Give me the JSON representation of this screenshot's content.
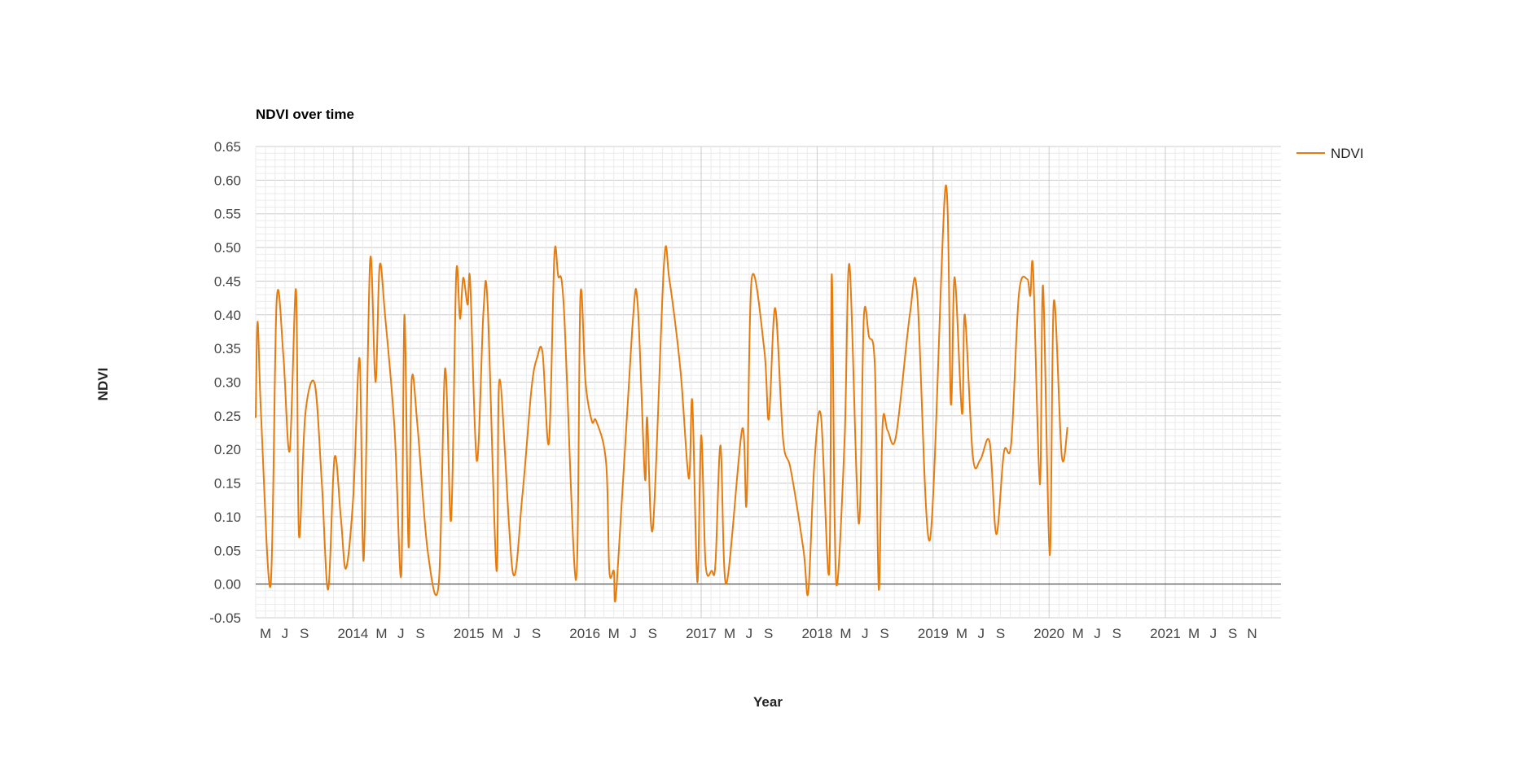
{
  "chart_data": {
    "type": "line",
    "title": "NDVI over time",
    "xlabel": "Year",
    "ylabel": "NDVI",
    "ylim": [
      -0.05,
      0.65
    ],
    "yticks": [
      "0.65",
      "0.60",
      "0.55",
      "0.50",
      "0.45",
      "0.40",
      "0.35",
      "0.30",
      "0.25",
      "0.20",
      "0.15",
      "0.10",
      "0.05",
      "0.00",
      "-0.05"
    ],
    "xlim": [
      "2013-03-01",
      "2021-12-31"
    ],
    "xticks": [
      {
        "date": "2013-04-01",
        "label": "M"
      },
      {
        "date": "2013-06-01",
        "label": "J"
      },
      {
        "date": "2013-08-01",
        "label": "S"
      },
      {
        "date": "2014-01-01",
        "label": "2014"
      },
      {
        "date": "2014-04-01",
        "label": "M"
      },
      {
        "date": "2014-06-01",
        "label": "J"
      },
      {
        "date": "2014-08-01",
        "label": "S"
      },
      {
        "date": "2015-01-01",
        "label": "2015"
      },
      {
        "date": "2015-04-01",
        "label": "M"
      },
      {
        "date": "2015-06-01",
        "label": "J"
      },
      {
        "date": "2015-08-01",
        "label": "S"
      },
      {
        "date": "2016-01-01",
        "label": "2016"
      },
      {
        "date": "2016-04-01",
        "label": "M"
      },
      {
        "date": "2016-06-01",
        "label": "J"
      },
      {
        "date": "2016-08-01",
        "label": "S"
      },
      {
        "date": "2017-01-01",
        "label": "2017"
      },
      {
        "date": "2017-04-01",
        "label": "M"
      },
      {
        "date": "2017-06-01",
        "label": "J"
      },
      {
        "date": "2017-08-01",
        "label": "S"
      },
      {
        "date": "2018-01-01",
        "label": "2018"
      },
      {
        "date": "2018-04-01",
        "label": "M"
      },
      {
        "date": "2018-06-01",
        "label": "J"
      },
      {
        "date": "2018-08-01",
        "label": "S"
      },
      {
        "date": "2019-01-01",
        "label": "2019"
      },
      {
        "date": "2019-04-01",
        "label": "M"
      },
      {
        "date": "2019-06-01",
        "label": "J"
      },
      {
        "date": "2019-08-01",
        "label": "S"
      },
      {
        "date": "2020-01-01",
        "label": "2020"
      },
      {
        "date": "2020-04-01",
        "label": "M"
      },
      {
        "date": "2020-06-01",
        "label": "J"
      },
      {
        "date": "2020-08-01",
        "label": "S"
      },
      {
        "date": "2021-01-01",
        "label": "2021"
      },
      {
        "date": "2021-04-01",
        "label": "M"
      },
      {
        "date": "2021-06-01",
        "label": "J"
      },
      {
        "date": "2021-08-01",
        "label": "S"
      },
      {
        "date": "2021-10-01",
        "label": "N"
      }
    ],
    "grid": true,
    "legend_position": "right",
    "series": [
      {
        "name": "NDVI",
        "color": "#e67c0e",
        "points": [
          [
            "2013-03-01",
            0.247
          ],
          [
            "2013-03-07",
            0.39
          ],
          [
            "2013-03-18",
            0.25
          ],
          [
            "2013-04-17",
            -0.002
          ],
          [
            "2013-05-06",
            0.42
          ],
          [
            "2013-05-27",
            0.34
          ],
          [
            "2013-06-16",
            0.198
          ],
          [
            "2013-07-06",
            0.437
          ],
          [
            "2013-07-15",
            0.073
          ],
          [
            "2013-08-04",
            0.252
          ],
          [
            "2013-09-03",
            0.297
          ],
          [
            "2013-09-25",
            0.15
          ],
          [
            "2013-10-15",
            -0.008
          ],
          [
            "2013-11-04",
            0.188
          ],
          [
            "2013-11-24",
            0.098
          ],
          [
            "2013-12-10",
            0.023
          ],
          [
            "2014-01-02",
            0.13
          ],
          [
            "2014-01-22",
            0.335
          ],
          [
            "2014-02-04",
            0.036
          ],
          [
            "2014-02-24",
            0.481
          ],
          [
            "2014-03-13",
            0.3
          ],
          [
            "2014-03-26",
            0.473
          ],
          [
            "2014-04-12",
            0.4
          ],
          [
            "2014-05-12",
            0.23
          ],
          [
            "2014-06-02",
            0.013
          ],
          [
            "2014-06-12",
            0.4
          ],
          [
            "2014-06-25",
            0.055
          ],
          [
            "2014-07-05",
            0.304
          ],
          [
            "2014-07-24",
            0.23
          ],
          [
            "2014-08-24",
            0.05
          ],
          [
            "2014-09-28",
            0.0
          ],
          [
            "2014-10-18",
            0.32
          ],
          [
            "2014-11-06",
            0.095
          ],
          [
            "2014-11-22",
            0.46
          ],
          [
            "2014-12-04",
            0.394
          ],
          [
            "2014-12-14",
            0.455
          ],
          [
            "2014-12-28",
            0.415
          ],
          [
            "2015-01-05",
            0.45
          ],
          [
            "2015-01-26",
            0.183
          ],
          [
            "2015-02-16",
            0.406
          ],
          [
            "2015-03-01",
            0.415
          ],
          [
            "2015-03-29",
            0.02
          ],
          [
            "2015-04-08",
            0.304
          ],
          [
            "2015-05-19",
            0.018
          ],
          [
            "2015-06-18",
            0.13
          ],
          [
            "2015-07-17",
            0.29
          ],
          [
            "2015-08-04",
            0.337
          ],
          [
            "2015-08-21",
            0.343
          ],
          [
            "2015-09-10",
            0.21
          ],
          [
            "2015-09-27",
            0.487
          ],
          [
            "2015-10-09",
            0.458
          ],
          [
            "2015-10-27",
            0.41
          ],
          [
            "2015-12-04",
            0.006
          ],
          [
            "2015-12-18",
            0.428
          ],
          [
            "2016-01-03",
            0.3
          ],
          [
            "2016-01-23",
            0.242
          ],
          [
            "2016-02-06",
            0.242
          ],
          [
            "2016-03-08",
            0.18
          ],
          [
            "2016-03-18",
            0.02
          ],
          [
            "2016-04-01",
            0.02
          ],
          [
            "2016-04-10",
            -0.004
          ],
          [
            "2016-05-29",
            0.378
          ],
          [
            "2016-06-15",
            0.416
          ],
          [
            "2016-07-08",
            0.158
          ],
          [
            "2016-07-15",
            0.247
          ],
          [
            "2016-08-02",
            0.083
          ],
          [
            "2016-09-06",
            0.475
          ],
          [
            "2016-09-23",
            0.452
          ],
          [
            "2016-10-28",
            0.317
          ],
          [
            "2016-11-23",
            0.157
          ],
          [
            "2016-12-04",
            0.272
          ],
          [
            "2016-12-20",
            0.003
          ],
          [
            "2017-01-01",
            0.221
          ],
          [
            "2017-01-15",
            0.03
          ],
          [
            "2017-02-03",
            0.02
          ],
          [
            "2017-02-15",
            0.03
          ],
          [
            "2017-03-03",
            0.206
          ],
          [
            "2017-03-21",
            0.0
          ],
          [
            "2017-05-10",
            0.23
          ],
          [
            "2017-05-24",
            0.12
          ],
          [
            "2017-06-09",
            0.453
          ],
          [
            "2017-07-19",
            0.347
          ],
          [
            "2017-08-02",
            0.245
          ],
          [
            "2017-08-22",
            0.41
          ],
          [
            "2017-09-16",
            0.215
          ],
          [
            "2017-10-10",
            0.17
          ],
          [
            "2017-11-19",
            0.051
          ],
          [
            "2017-12-04",
            -0.012
          ],
          [
            "2017-12-23",
            0.177
          ],
          [
            "2018-01-13",
            0.25
          ],
          [
            "2018-02-08",
            0.017
          ],
          [
            "2018-02-16",
            0.46
          ],
          [
            "2018-02-25",
            0.1
          ],
          [
            "2018-03-06",
            0.003
          ],
          [
            "2018-03-29",
            0.221
          ],
          [
            "2018-04-13",
            0.474
          ],
          [
            "2018-05-12",
            0.09
          ],
          [
            "2018-05-28",
            0.395
          ],
          [
            "2018-06-13",
            0.368
          ],
          [
            "2018-07-02",
            0.32
          ],
          [
            "2018-07-14",
            -0.008
          ],
          [
            "2018-07-26",
            0.237
          ],
          [
            "2018-08-11",
            0.228
          ],
          [
            "2018-09-06",
            0.219
          ],
          [
            "2018-10-20",
            0.401
          ],
          [
            "2018-11-12",
            0.43
          ],
          [
            "2018-12-22",
            0.066
          ],
          [
            "2019-02-09",
            0.59
          ],
          [
            "2019-02-26",
            0.268
          ],
          [
            "2019-03-10",
            0.456
          ],
          [
            "2019-04-02",
            0.253
          ],
          [
            "2019-04-11",
            0.4
          ],
          [
            "2019-05-06",
            0.19
          ],
          [
            "2019-05-30",
            0.185
          ],
          [
            "2019-06-28",
            0.211
          ],
          [
            "2019-07-19",
            0.074
          ],
          [
            "2019-08-12",
            0.196
          ],
          [
            "2019-09-04",
            0.21
          ],
          [
            "2019-09-28",
            0.43
          ],
          [
            "2019-10-24",
            0.453
          ],
          [
            "2019-11-03",
            0.428
          ],
          [
            "2019-11-12",
            0.466
          ],
          [
            "2019-12-03",
            0.148
          ],
          [
            "2019-12-13",
            0.443
          ],
          [
            "2020-01-03",
            0.043
          ],
          [
            "2020-01-16",
            0.42
          ],
          [
            "2020-02-10",
            0.19
          ],
          [
            "2020-02-28",
            0.233
          ]
        ]
      }
    ]
  }
}
